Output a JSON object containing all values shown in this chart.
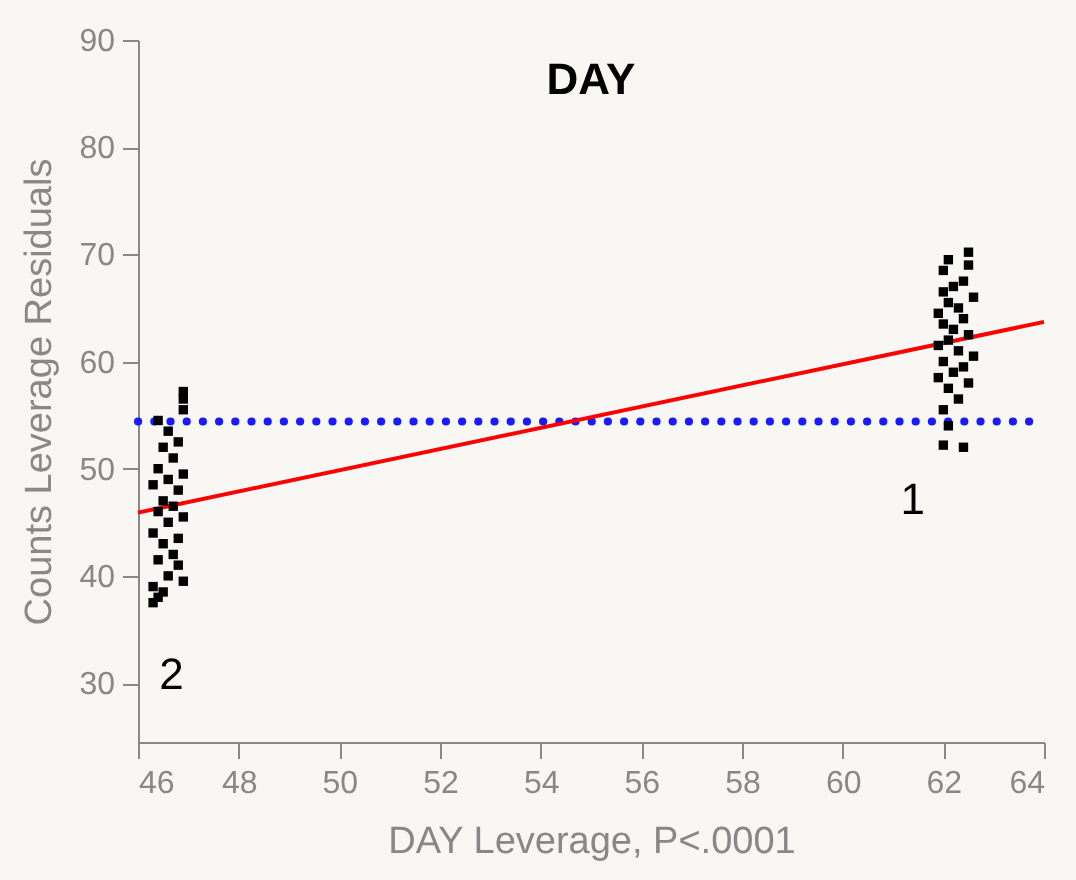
{
  "chart_data": {
    "type": "scatter",
    "title": "DAY",
    "xlabel": "DAY Leverage, P<.0001",
    "ylabel": "Counts Leverage Residuals",
    "xlim": [
      46,
      64
    ],
    "xticks": [
      46,
      48,
      50,
      52,
      54,
      56,
      58,
      60,
      62,
      64
    ],
    "ylim": [
      24.5,
      90
    ],
    "yticks": [
      30,
      40,
      50,
      60,
      70,
      80,
      90
    ],
    "grid": false,
    "series": [
      {
        "marker": "square",
        "color": "#000000",
        "x": [
          46.3,
          46.4,
          46.5,
          46.3,
          46.6,
          46.8,
          46.9,
          46.4,
          46.7,
          46.5,
          46.8,
          46.3,
          46.6,
          46.9,
          46.4,
          46.7,
          46.5,
          46.8,
          46.3,
          46.6,
          46.9,
          46.4,
          46.7,
          46.5,
          46.8,
          46.6,
          46.4,
          46.9,
          46.9,
          46.9,
          62.0,
          62.4,
          62.1,
          62.0,
          62.3,
          62.1,
          62.5,
          61.9,
          62.2,
          62.4,
          62.0,
          62.6,
          62.3,
          61.9,
          62.1,
          62.5,
          62.2,
          62.0,
          62.4,
          61.9,
          62.3,
          62.1,
          62.6,
          62.0,
          62.2,
          62.4,
          62.0,
          62.5,
          62.1,
          62.5
        ],
        "values": [
          37.5,
          38,
          38.5,
          39,
          40,
          41,
          39.5,
          41.5,
          42,
          43,
          43.5,
          44,
          45,
          45.5,
          46,
          46.5,
          47,
          48,
          48.5,
          49,
          49.5,
          50,
          51,
          52,
          52.5,
          53.5,
          54.5,
          55.5,
          56.5,
          57.2,
          52.2,
          52,
          54,
          55.5,
          56.5,
          57.5,
          58,
          58.5,
          59,
          59.5,
          60,
          60.5,
          61,
          61.5,
          62,
          62.5,
          63,
          63.5,
          64,
          64.5,
          65,
          65.5,
          66,
          66.5,
          67,
          67.5,
          68.5,
          69,
          69.5,
          70.2
        ]
      },
      {
        "type": "line",
        "color": "#ff0000",
        "x": [
          46,
          64
        ],
        "values": [
          45.9,
          63.7
        ]
      }
    ],
    "ref_lines": [
      {
        "axis": "y",
        "value": 54.4,
        "color": "#1a1aff",
        "line_style": "dotted"
      }
    ],
    "annotations": [
      "2",
      "1"
    ]
  }
}
